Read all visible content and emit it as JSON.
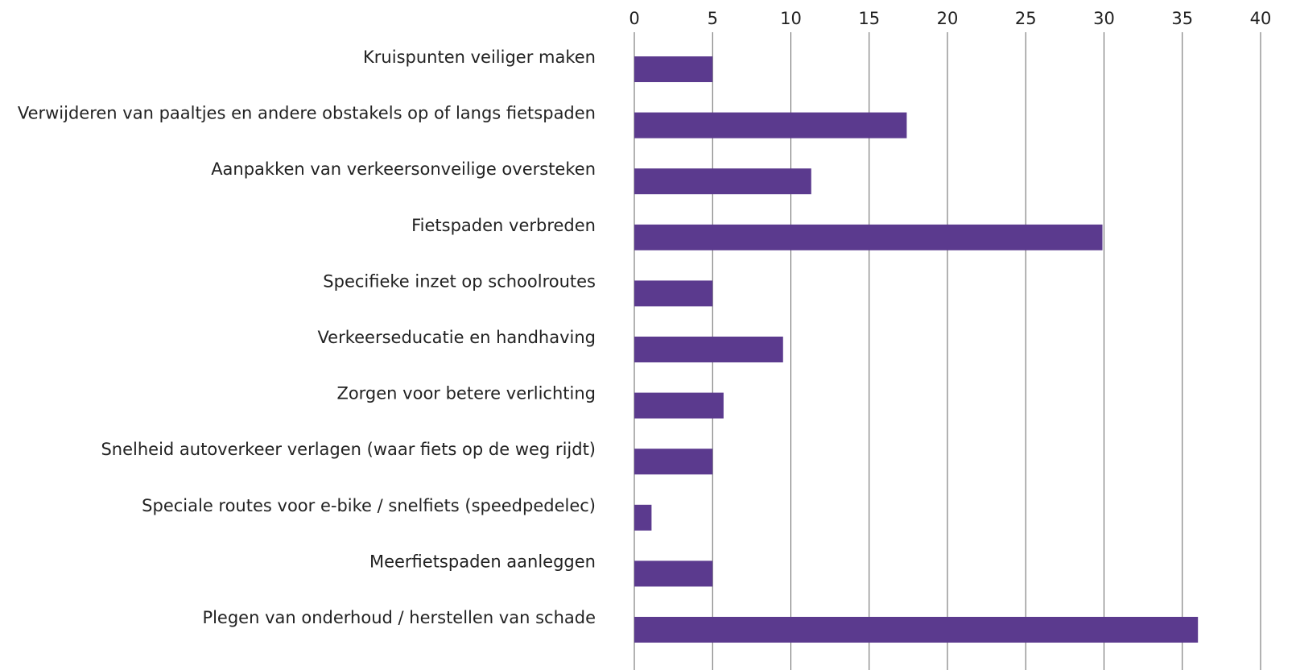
{
  "chart_data": {
    "type": "barh",
    "categories": [
      "Kruispunten veiliger maken",
      "Verwijderen van paaltjes en andere obstakels op of langs fietspaden",
      "Aanpakken van verkeersonveilige oversteken",
      "Fietspaden verbreden",
      "Specifieke inzet op schoolroutes",
      "Verkeerseducatie en handhaving",
      "Zorgen voor betere verlichting",
      "Snelheid autoverkeer verlagen (waar fiets op de weg rijdt)",
      "Speciale routes voor e-bike / snelfiets (speedpedelec)",
      "Meerfietspaden aanleggen",
      "Plegen van onderhoud / herstellen van schade"
    ],
    "values": [
      5,
      17.4,
      11.3,
      29.9,
      5,
      9.5,
      5.7,
      5,
      1.1,
      5,
      36
    ],
    "color": "#5b3a8e",
    "xlim": [
      0,
      40
    ],
    "xticks": [
      0,
      5,
      10,
      15,
      20,
      25,
      30,
      35,
      40
    ],
    "grid": true
  }
}
